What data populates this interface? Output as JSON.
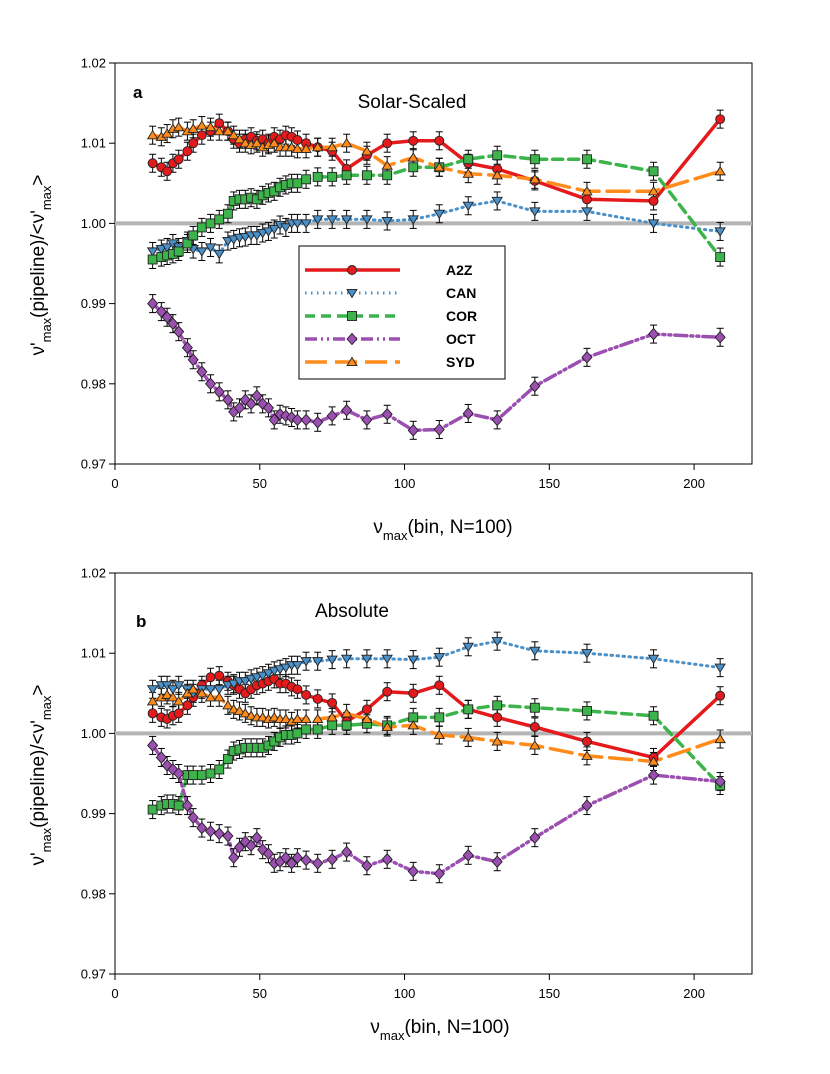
{
  "chart_data": [
    {
      "type": "line",
      "panel_label": "a",
      "title": "Solar-Scaled",
      "xlabel": {
        "main": "ν",
        "sub": "max",
        "rest": "(bin, N=100)"
      },
      "ylabel": {
        "p1": "ν'",
        "s1": "max",
        "p2": "(pipeline)/<ν'",
        "s2": "max",
        "p3": ">"
      },
      "xlim": [
        0,
        220
      ],
      "ylim": [
        0.97,
        1.02
      ],
      "xticks": [
        0,
        50,
        100,
        150,
        200
      ],
      "yticks": [
        0.97,
        0.98,
        0.99,
        1.0,
        1.01,
        1.02
      ],
      "xtick_labels": [
        "0",
        "50",
        "100",
        "150",
        "200"
      ],
      "ytick_labels": [
        "0.97",
        "0.98",
        "0.99",
        "1.00",
        "1.01",
        "1.02"
      ],
      "reference_line": 1.0,
      "legend": true,
      "series": [
        {
          "name": "A2Z",
          "color": "#e41a1c",
          "dash": "",
          "width": 3.5,
          "marker": "circle",
          "x": [
            13,
            16,
            18,
            20,
            22,
            25,
            27,
            30,
            33,
            36,
            39,
            41,
            43,
            45,
            47,
            49,
            51,
            53,
            55,
            57,
            59,
            61,
            63,
            66,
            70,
            75,
            80,
            87,
            94,
            103,
            112,
            122,
            132,
            145,
            163,
            186,
            209
          ],
          "y": [
            1.0075,
            1.007,
            1.0065,
            1.0075,
            1.008,
            1.009,
            1.01,
            1.011,
            1.0115,
            1.0125,
            1.0115,
            1.0105,
            1.01,
            1.0105,
            1.0108,
            1.0103,
            1.0105,
            1.01,
            1.0108,
            1.0105,
            1.011,
            1.0108,
            1.0104,
            1.01,
            1.0095,
            1.009,
            1.0068,
            1.0085,
            1.01,
            1.0103,
            1.0103,
            1.0075,
            1.0068,
            1.0053,
            1.003,
            1.0028,
            1.013
          ]
        },
        {
          "name": "CAN",
          "color": "#4a90c9",
          "dash": "1.5 4.5",
          "width": 3,
          "marker": "triangle-down",
          "x": [
            13,
            16,
            18,
            20,
            22,
            25,
            27,
            30,
            33,
            36,
            39,
            41,
            43,
            45,
            47,
            49,
            51,
            53,
            55,
            57,
            59,
            61,
            63,
            66,
            70,
            75,
            80,
            87,
            94,
            103,
            112,
            122,
            132,
            145,
            163,
            186,
            209
          ],
          "y": [
            0.9965,
            0.9968,
            0.997,
            0.9975,
            0.997,
            0.9978,
            0.9968,
            0.9965,
            0.997,
            0.9962,
            0.9978,
            0.998,
            0.9982,
            0.9983,
            0.9985,
            0.9985,
            0.9988,
            0.999,
            0.9993,
            0.9998,
            0.9995,
            1.0,
            1.0,
            1.0,
            1.0005,
            1.0005,
            1.0005,
            1.0005,
            1.0003,
            1.0005,
            1.0012,
            1.0022,
            1.0028,
            1.0015,
            1.0015,
            1.0,
            0.999
          ]
        },
        {
          "name": "COR",
          "color": "#3cb44b",
          "dash": "10 6",
          "width": 3.5,
          "marker": "square",
          "x": [
            13,
            16,
            18,
            20,
            22,
            25,
            27,
            30,
            33,
            36,
            39,
            41,
            43,
            45,
            47,
            49,
            51,
            53,
            55,
            57,
            59,
            61,
            63,
            66,
            70,
            75,
            80,
            87,
            94,
            103,
            112,
            122,
            132,
            145,
            163,
            186,
            209
          ],
          "y": [
            0.9955,
            0.9958,
            0.996,
            0.9962,
            0.9965,
            0.9975,
            0.9985,
            0.9995,
            1.0,
            1.0005,
            1.0012,
            1.0028,
            1.003,
            1.003,
            1.0032,
            1.003,
            1.0035,
            1.0038,
            1.004,
            1.0045,
            1.0048,
            1.005,
            1.005,
            1.0055,
            1.0058,
            1.0058,
            1.006,
            1.006,
            1.006,
            1.007,
            1.007,
            1.008,
            1.0085,
            1.008,
            1.008,
            1.0065,
            0.9958
          ]
        },
        {
          "name": "OCT",
          "color": "#9b4fb0",
          "dash": "12 4 2 4 2 4",
          "width": 3.5,
          "marker": "diamond",
          "x": [
            13,
            16,
            18,
            20,
            22,
            25,
            27,
            30,
            33,
            36,
            39,
            41,
            43,
            45,
            47,
            49,
            51,
            53,
            55,
            57,
            59,
            61,
            63,
            66,
            70,
            75,
            80,
            87,
            94,
            103,
            112,
            122,
            132,
            145,
            163,
            186,
            209
          ],
          "y": [
            0.99,
            0.989,
            0.9883,
            0.9875,
            0.9865,
            0.9845,
            0.983,
            0.9815,
            0.98,
            0.979,
            0.978,
            0.9765,
            0.977,
            0.978,
            0.9775,
            0.9785,
            0.9775,
            0.977,
            0.9755,
            0.9762,
            0.976,
            0.9758,
            0.9755,
            0.9755,
            0.9752,
            0.976,
            0.9767,
            0.9755,
            0.9762,
            0.9742,
            0.9743,
            0.9763,
            0.9755,
            0.9797,
            0.9833,
            0.9862,
            0.9858
          ]
        },
        {
          "name": "SYD",
          "color": "#ff8c1a",
          "dash": "22 8",
          "width": 3.5,
          "marker": "triangle-up",
          "x": [
            13,
            16,
            18,
            20,
            22,
            25,
            27,
            30,
            33,
            36,
            39,
            41,
            43,
            45,
            47,
            49,
            51,
            53,
            55,
            57,
            59,
            61,
            63,
            66,
            70,
            75,
            80,
            87,
            94,
            103,
            112,
            122,
            132,
            145,
            163,
            186,
            209
          ],
          "y": [
            1.011,
            1.0108,
            1.0112,
            1.0118,
            1.012,
            1.0115,
            1.0118,
            1.0122,
            1.012,
            1.0115,
            1.0115,
            1.011,
            1.0105,
            1.01,
            1.0098,
            1.01,
            1.0095,
            1.0098,
            1.01,
            1.0095,
            1.0095,
            1.0095,
            1.0093,
            1.0093,
            1.0095,
            1.0095,
            1.01,
            1.009,
            1.0072,
            1.0082,
            1.007,
            1.0062,
            1.006,
            1.0055,
            1.004,
            1.004,
            1.0065
          ]
        }
      ]
    },
    {
      "type": "line",
      "panel_label": "b",
      "title": "Absolute",
      "xlabel": {
        "main": "ν",
        "sub": "max",
        "rest": "(bin, N=100)"
      },
      "ylabel": {
        "p1": "ν'",
        "s1": "max",
        "p2": "(pipeline)/<ν'",
        "s2": "max",
        "p3": ">"
      },
      "xlim": [
        0,
        220
      ],
      "ylim": [
        0.97,
        1.02
      ],
      "xticks": [
        0,
        50,
        100,
        150,
        200
      ],
      "yticks": [
        0.97,
        0.98,
        0.99,
        1.0,
        1.01,
        1.02
      ],
      "xtick_labels": [
        "0",
        "50",
        "100",
        "150",
        "200"
      ],
      "ytick_labels": [
        "0.97",
        "0.98",
        "0.99",
        "1.00",
        "1.01",
        "1.02"
      ],
      "reference_line": 1.0,
      "legend": false,
      "series": [
        {
          "name": "A2Z",
          "color": "#e41a1c",
          "dash": "",
          "width": 3.5,
          "marker": "circle",
          "x": [
            13,
            16,
            18,
            20,
            22,
            25,
            27,
            30,
            33,
            36,
            39,
            41,
            43,
            45,
            47,
            49,
            51,
            53,
            55,
            57,
            59,
            61,
            63,
            66,
            70,
            75,
            80,
            87,
            94,
            103,
            112,
            122,
            132,
            145,
            163,
            186,
            209
          ],
          "y": [
            1.0025,
            1.002,
            1.0018,
            1.0022,
            1.0025,
            1.0035,
            1.0045,
            1.006,
            1.007,
            1.0072,
            1.0065,
            1.006,
            1.0055,
            1.005,
            1.0055,
            1.006,
            1.0062,
            1.0065,
            1.0068,
            1.0062,
            1.0062,
            1.0058,
            1.0055,
            1.0048,
            1.0043,
            1.0038,
            1.0015,
            1.003,
            1.0052,
            1.005,
            1.006,
            1.003,
            1.002,
            1.0008,
            0.999,
            0.997,
            1.0047
          ]
        },
        {
          "name": "CAN",
          "color": "#4a90c9",
          "dash": "1.5 4.5",
          "width": 3,
          "marker": "triangle-down",
          "x": [
            13,
            16,
            18,
            20,
            22,
            25,
            27,
            30,
            33,
            36,
            39,
            41,
            43,
            45,
            47,
            49,
            51,
            53,
            55,
            57,
            59,
            61,
            63,
            66,
            70,
            75,
            80,
            87,
            94,
            103,
            112,
            122,
            132,
            145,
            163,
            186,
            209
          ],
          "y": [
            1.0055,
            1.006,
            1.006,
            1.0055,
            1.006,
            1.0055,
            1.005,
            1.0055,
            1.0055,
            1.0055,
            1.006,
            1.0062,
            1.0065,
            1.0065,
            1.0068,
            1.007,
            1.0072,
            1.0075,
            1.0078,
            1.008,
            1.0082,
            1.0085,
            1.0085,
            1.009,
            1.009,
            1.0092,
            1.0093,
            1.0093,
            1.0093,
            1.0092,
            1.0095,
            1.0108,
            1.0115,
            1.0103,
            1.01,
            1.0093,
            1.0082
          ]
        },
        {
          "name": "COR",
          "color": "#3cb44b",
          "dash": "10 6",
          "width": 3.5,
          "marker": "square",
          "x": [
            13,
            16,
            18,
            20,
            22,
            25,
            27,
            30,
            33,
            36,
            39,
            41,
            43,
            45,
            47,
            49,
            51,
            53,
            55,
            57,
            59,
            61,
            63,
            66,
            70,
            75,
            80,
            87,
            94,
            103,
            112,
            122,
            132,
            145,
            163,
            186,
            209
          ],
          "y": [
            0.9905,
            0.991,
            0.9912,
            0.9912,
            0.991,
            0.9948,
            0.9948,
            0.9948,
            0.995,
            0.9955,
            0.9968,
            0.9978,
            0.998,
            0.9982,
            0.9982,
            0.9982,
            0.9982,
            0.9985,
            0.999,
            0.9995,
            0.9998,
            0.9998,
            1.0,
            1.0005,
            1.0005,
            1.001,
            1.001,
            1.0012,
            1.001,
            1.002,
            1.002,
            1.003,
            1.0035,
            1.0032,
            1.0028,
            1.0022,
            0.9935
          ]
        },
        {
          "name": "OCT",
          "color": "#9b4fb0",
          "dash": "12 4 2 4 2 4",
          "width": 3.5,
          "marker": "diamond",
          "x": [
            13,
            16,
            18,
            20,
            22,
            25,
            27,
            30,
            33,
            36,
            39,
            41,
            43,
            45,
            47,
            49,
            51,
            53,
            55,
            57,
            59,
            61,
            63,
            66,
            70,
            75,
            80,
            87,
            94,
            103,
            112,
            122,
            132,
            145,
            163,
            186,
            209
          ],
          "y": [
            0.9985,
            0.997,
            0.996,
            0.9955,
            0.995,
            0.991,
            0.9895,
            0.9882,
            0.9878,
            0.9875,
            0.9872,
            0.9845,
            0.9858,
            0.9865,
            0.986,
            0.987,
            0.9855,
            0.985,
            0.9838,
            0.984,
            0.9845,
            0.9838,
            0.9845,
            0.9842,
            0.9838,
            0.9843,
            0.9852,
            0.9835,
            0.9843,
            0.9828,
            0.9825,
            0.9848,
            0.984,
            0.987,
            0.991,
            0.9948,
            0.994
          ]
        },
        {
          "name": "SYD",
          "color": "#ff8c1a",
          "dash": "22 8",
          "width": 3.5,
          "marker": "triangle-up",
          "x": [
            13,
            16,
            18,
            20,
            22,
            25,
            27,
            30,
            33,
            36,
            39,
            41,
            43,
            45,
            47,
            49,
            51,
            53,
            55,
            57,
            59,
            61,
            63,
            66,
            70,
            75,
            80,
            87,
            94,
            103,
            112,
            122,
            132,
            145,
            163,
            186,
            209
          ],
          "y": [
            1.004,
            1.0045,
            1.0048,
            1.0045,
            1.004,
            1.005,
            1.0055,
            1.005,
            1.0045,
            1.0045,
            1.0035,
            1.003,
            1.0028,
            1.0025,
            1.0022,
            1.002,
            1.002,
            1.0018,
            1.002,
            1.0018,
            1.0018,
            1.0015,
            1.0018,
            1.0018,
            1.0018,
            1.002,
            1.0025,
            1.0018,
            1.0008,
            1.001,
            0.9998,
            0.9995,
            0.999,
            0.9985,
            0.9972,
            0.9965,
            0.9993
          ]
        }
      ]
    }
  ]
}
